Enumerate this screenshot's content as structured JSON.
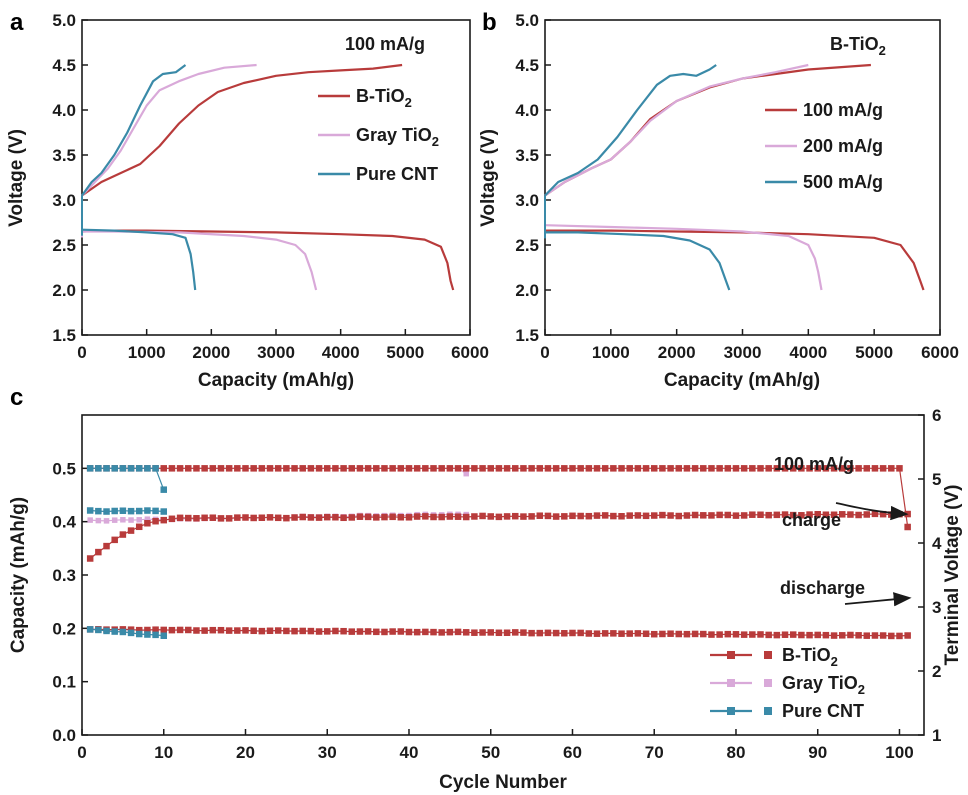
{
  "colors": {
    "b_tio2": "#b83b3b",
    "gray_tio2": "#d9a9d9",
    "pure_cnt": "#3a8aa8",
    "axis": "#1a1a1a"
  },
  "chart_data": [
    {
      "panel": "a",
      "type": "line",
      "annotation": "100 mA/g",
      "xlabel": "Capacity (mAh/g)",
      "ylabel": "Voltage (V)",
      "xlim": [
        0,
        6000
      ],
      "ylim": [
        1.5,
        5.0
      ],
      "xticks": [
        "0",
        "1000",
        "2000",
        "3000",
        "4000",
        "5000",
        "6000"
      ],
      "yticks": [
        "1.5",
        "2.0",
        "2.5",
        "3.0",
        "3.5",
        "4.0",
        "4.5",
        "5.0"
      ],
      "legend": {
        "position": "middle-right"
      },
      "series": [
        {
          "name": "B-TiO",
          "sub": "2",
          "color": "#b83b3b",
          "charge": [
            [
              0,
              3.05
            ],
            [
              300,
              3.2
            ],
            [
              600,
              3.3
            ],
            [
              900,
              3.4
            ],
            [
              1200,
              3.6
            ],
            [
              1500,
              3.85
            ],
            [
              1800,
              4.05
            ],
            [
              2100,
              4.2
            ],
            [
              2500,
              4.3
            ],
            [
              3000,
              4.38
            ],
            [
              3500,
              4.42
            ],
            [
              4000,
              4.44
            ],
            [
              4500,
              4.46
            ],
            [
              4950,
              4.5
            ]
          ],
          "discharge": [
            [
              0,
              2.65
            ],
            [
              500,
              2.66
            ],
            [
              1000,
              2.66
            ],
            [
              2000,
              2.65
            ],
            [
              3000,
              2.64
            ],
            [
              4000,
              2.62
            ],
            [
              4800,
              2.6
            ],
            [
              5300,
              2.56
            ],
            [
              5550,
              2.48
            ],
            [
              5650,
              2.3
            ],
            [
              5700,
              2.1
            ],
            [
              5740,
              2.0
            ]
          ]
        },
        {
          "name": "Gray TiO",
          "sub": "2",
          "color": "#d9a9d9",
          "charge": [
            [
              0,
              3.05
            ],
            [
              200,
              3.2
            ],
            [
              400,
              3.35
            ],
            [
              600,
              3.55
            ],
            [
              800,
              3.8
            ],
            [
              1000,
              4.05
            ],
            [
              1200,
              4.22
            ],
            [
              1500,
              4.32
            ],
            [
              1800,
              4.4
            ],
            [
              2200,
              4.47
            ],
            [
              2700,
              4.5
            ]
          ],
          "discharge": [
            [
              0,
              2.65
            ],
            [
              500,
              2.65
            ],
            [
              1500,
              2.64
            ],
            [
              2500,
              2.6
            ],
            [
              3000,
              2.56
            ],
            [
              3300,
              2.5
            ],
            [
              3450,
              2.4
            ],
            [
              3550,
              2.2
            ],
            [
              3620,
              2.0
            ]
          ]
        },
        {
          "name": "Pure CNT",
          "sub": "",
          "color": "#3a8aa8",
          "charge": [
            [
              0,
              3.05
            ],
            [
              150,
              3.2
            ],
            [
              300,
              3.3
            ],
            [
              500,
              3.5
            ],
            [
              700,
              3.75
            ],
            [
              900,
              4.05
            ],
            [
              1100,
              4.32
            ],
            [
              1250,
              4.4
            ],
            [
              1450,
              4.42
            ],
            [
              1600,
              4.5
            ]
          ],
          "discharge": [
            [
              0,
              2.67
            ],
            [
              500,
              2.66
            ],
            [
              1000,
              2.64
            ],
            [
              1400,
              2.62
            ],
            [
              1600,
              2.58
            ],
            [
              1680,
              2.4
            ],
            [
              1720,
              2.2
            ],
            [
              1750,
              2.0
            ]
          ]
        }
      ]
    },
    {
      "panel": "b",
      "type": "line",
      "annotation": "B-TiO",
      "annotation_sub": "2",
      "xlabel": "Capacity (mAh/g)",
      "ylabel": "Voltage (V)",
      "xlim": [
        0,
        6000
      ],
      "ylim": [
        1.5,
        5.0
      ],
      "xticks": [
        "0",
        "1000",
        "2000",
        "3000",
        "4000",
        "5000",
        "6000"
      ],
      "yticks": [
        "1.5",
        "2.0",
        "2.5",
        "3.0",
        "3.5",
        "4.0",
        "4.5",
        "5.0"
      ],
      "legend": {
        "position": "middle-right"
      },
      "series": [
        {
          "name": "100 mA/g",
          "color": "#b83b3b",
          "charge": [
            [
              0,
              3.05
            ],
            [
              300,
              3.2
            ],
            [
              700,
              3.35
            ],
            [
              1000,
              3.45
            ],
            [
              1300,
              3.65
            ],
            [
              1600,
              3.9
            ],
            [
              2000,
              4.1
            ],
            [
              2500,
              4.25
            ],
            [
              3000,
              4.35
            ],
            [
              4000,
              4.45
            ],
            [
              4950,
              4.5
            ]
          ],
          "discharge": [
            [
              0,
              2.66
            ],
            [
              1000,
              2.66
            ],
            [
              2000,
              2.65
            ],
            [
              3000,
              2.64
            ],
            [
              4000,
              2.62
            ],
            [
              5000,
              2.58
            ],
            [
              5400,
              2.5
            ],
            [
              5600,
              2.3
            ],
            [
              5700,
              2.1
            ],
            [
              5750,
              2.0
            ]
          ]
        },
        {
          "name": "200 mA/g",
          "color": "#d9a9d9",
          "charge": [
            [
              0,
              3.05
            ],
            [
              300,
              3.2
            ],
            [
              700,
              3.35
            ],
            [
              1000,
              3.45
            ],
            [
              1300,
              3.65
            ],
            [
              1600,
              3.88
            ],
            [
              2000,
              4.1
            ],
            [
              2500,
              4.26
            ],
            [
              3000,
              4.35
            ],
            [
              3500,
              4.42
            ],
            [
              4000,
              4.5
            ]
          ],
          "discharge": [
            [
              0,
              2.72
            ],
            [
              1000,
              2.7
            ],
            [
              2000,
              2.68
            ],
            [
              3000,
              2.65
            ],
            [
              3700,
              2.6
            ],
            [
              4000,
              2.5
            ],
            [
              4100,
              2.35
            ],
            [
              4150,
              2.2
            ],
            [
              4200,
              2.0
            ]
          ]
        },
        {
          "name": "500 mA/g",
          "color": "#3a8aa8",
          "charge": [
            [
              0,
              3.05
            ],
            [
              200,
              3.2
            ],
            [
              500,
              3.3
            ],
            [
              800,
              3.45
            ],
            [
              1100,
              3.7
            ],
            [
              1400,
              4.0
            ],
            [
              1700,
              4.28
            ],
            [
              1900,
              4.38
            ],
            [
              2100,
              4.4
            ],
            [
              2300,
              4.38
            ],
            [
              2500,
              4.45
            ],
            [
              2600,
              4.5
            ]
          ],
          "discharge": [
            [
              0,
              2.64
            ],
            [
              500,
              2.64
            ],
            [
              1200,
              2.62
            ],
            [
              1800,
              2.6
            ],
            [
              2200,
              2.55
            ],
            [
              2500,
              2.45
            ],
            [
              2650,
              2.3
            ],
            [
              2750,
              2.1
            ],
            [
              2800,
              2.0
            ]
          ]
        }
      ]
    },
    {
      "panel": "c",
      "type": "scatter",
      "annotation": "100 mA/g",
      "annotations": [
        "charge",
        "discharge"
      ],
      "xlabel": "Cycle Number",
      "ylabel": "Capacity (mAh/g)",
      "y2label": "Terminal Voltage (V)",
      "xlim": [
        0,
        103
      ],
      "ylim": [
        0,
        0.6
      ],
      "y2lim": [
        1,
        6
      ],
      "xticks": [
        "0",
        "10",
        "20",
        "30",
        "40",
        "50",
        "60",
        "70",
        "80",
        "90",
        "100"
      ],
      "yticks": [
        "0.0",
        "0.1",
        "0.2",
        "0.3",
        "0.4",
        "0.5"
      ],
      "y2ticks": [
        "1",
        "2",
        "3",
        "4",
        "5",
        "6"
      ],
      "legend": {
        "position": "bottom-right"
      },
      "series": [
        {
          "name": "B-TiO",
          "sub": "2",
          "color": "#b83b3b",
          "cycles": 101,
          "capacity": 0.5,
          "capacity_last": 0.39,
          "charge_v_start": 3.75,
          "charge_v_plateau": 4.38,
          "charge_v_end": 4.45,
          "discharge_v_start": 2.65,
          "discharge_v_end": 2.55
        },
        {
          "name": "Gray TiO",
          "sub": "2",
          "color": "#d9a9d9",
          "cycles": 47,
          "capacity": 0.5,
          "capacity_last": 0.49,
          "charge_v_start": 4.35,
          "charge_v_end": 4.45,
          "discharge_v_start": 2.65,
          "discharge_v_end": 2.6
        },
        {
          "name": "Pure CNT",
          "sub": "",
          "color": "#3a8aa8",
          "cycles": 10,
          "capacity": 0.5,
          "capacity_last": 0.46,
          "charge_v_start": 4.5,
          "charge_v_end": 4.5,
          "discharge_v_start": 2.65,
          "discharge_v_end": 2.55
        }
      ]
    }
  ]
}
